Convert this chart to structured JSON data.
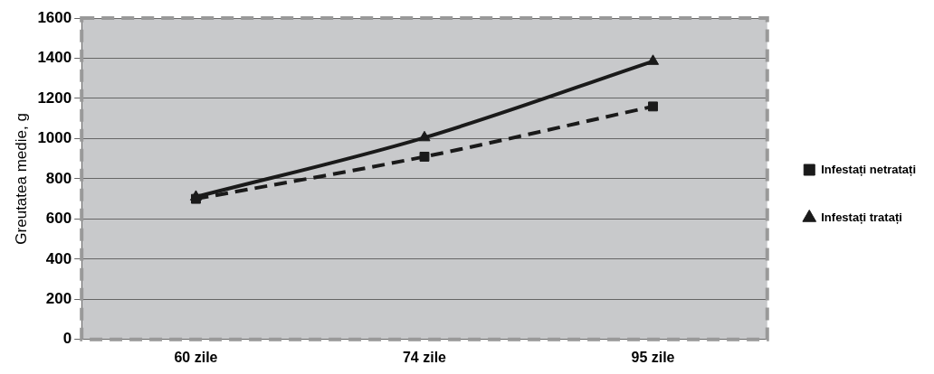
{
  "chart_data": {
    "type": "line",
    "ylabel": "Greutatea medie, g",
    "categories": [
      "60 zile",
      "74 zile",
      "95 zile"
    ],
    "series": [
      {
        "name": "Infestați netratați",
        "color": "#1a1a1a",
        "values": [
          700,
          910,
          1160
        ],
        "line_style": "dashed",
        "marker": "square"
      },
      {
        "name": "Infestați tratați",
        "color": "#1a1a1a",
        "values": [
          710,
          1005,
          1385
        ],
        "line_style": "solid",
        "marker": "triangle"
      }
    ],
    "ylim": [
      0,
      1600
    ],
    "yticks": [
      0,
      200,
      400,
      600,
      800,
      1000,
      1200,
      1400,
      1600
    ],
    "grid": "y",
    "legend": "right"
  }
}
